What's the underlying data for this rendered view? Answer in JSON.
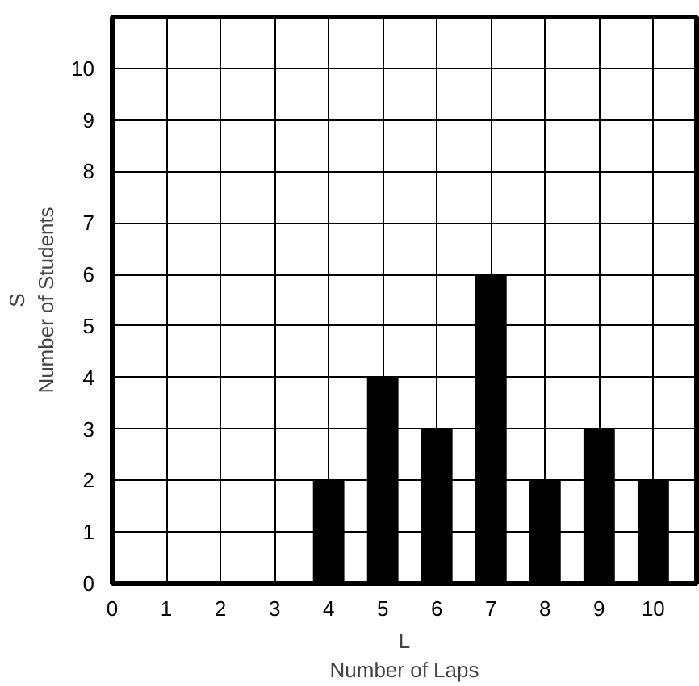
{
  "chart_data": {
    "type": "bar",
    "x": [
      4,
      5,
      6,
      7,
      8,
      9,
      10
    ],
    "values": [
      2,
      4,
      3,
      6,
      2,
      3,
      2
    ],
    "color": "#000000",
    "xlabel": "L\nNumber of Laps",
    "ylabel": "S\nNumber of Students",
    "xlim": [
      0,
      10.8
    ],
    "ylim": [
      0,
      11
    ],
    "xticks": [
      0,
      1,
      2,
      3,
      4,
      5,
      6,
      7,
      8,
      9,
      10
    ],
    "yticks": [
      0,
      1,
      2,
      3,
      4,
      5,
      6,
      7,
      8,
      9,
      10
    ],
    "grid": true
  }
}
